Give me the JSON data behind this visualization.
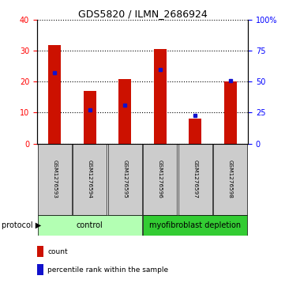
{
  "title": "GDS5820 / ILMN_2686924",
  "samples": [
    "GSM1276593",
    "GSM1276594",
    "GSM1276595",
    "GSM1276596",
    "GSM1276597",
    "GSM1276598"
  ],
  "counts": [
    32,
    17,
    21,
    30.5,
    8,
    20
  ],
  "percentile_ranks": [
    57.5,
    27.5,
    31.0,
    60.0,
    22.5,
    51.0
  ],
  "groups": [
    {
      "label": "control",
      "indices": [
        0,
        1,
        2
      ],
      "color": "#b3ffb3"
    },
    {
      "label": "myofibroblast depletion",
      "indices": [
        3,
        4,
        5
      ],
      "color": "#33cc33"
    }
  ],
  "bar_color": "#cc1100",
  "marker_color": "#1111cc",
  "ylim_left": [
    0,
    40
  ],
  "ylim_right": [
    0,
    100
  ],
  "yticks_left": [
    0,
    10,
    20,
    30,
    40
  ],
  "yticks_right": [
    0,
    25,
    50,
    75,
    100
  ],
  "ytick_labels_right": [
    "0",
    "25",
    "50",
    "75",
    "100%"
  ],
  "sample_box_color": "#cccccc",
  "legend_count_label": "count",
  "legend_pct_label": "percentile rank within the sample",
  "protocol_label": "protocol"
}
